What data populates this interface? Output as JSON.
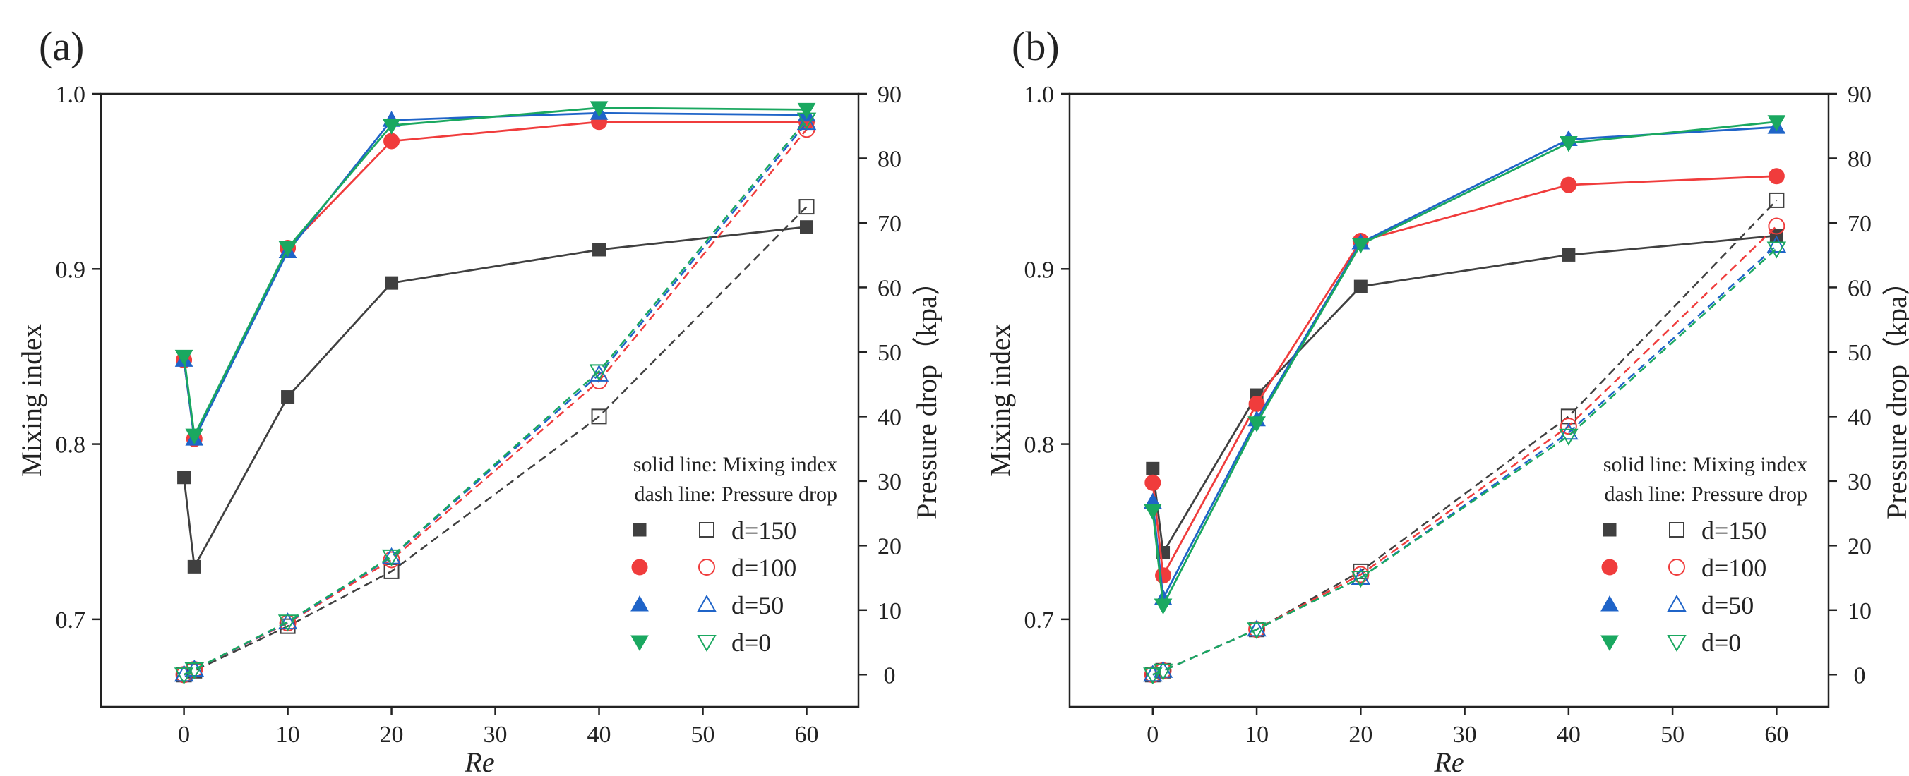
{
  "chart_data": [
    {
      "panel": "(a)",
      "type": "line",
      "xlabel": "Re",
      "ylabel_left": "Mixing index",
      "ylabel_right": "Pressure drop（kpa）",
      "xlim": [
        -8,
        65
      ],
      "ylim_left": [
        0.65,
        1.0
      ],
      "ylim_right": [
        -5,
        90
      ],
      "xticks": [
        0,
        10,
        20,
        30,
        40,
        50,
        60
      ],
      "yticks_left": [
        0.7,
        0.8,
        0.9,
        1.0
      ],
      "yticks_right": [
        0,
        10,
        20,
        30,
        40,
        50,
        60,
        70,
        80,
        90
      ],
      "x": [
        0,
        1,
        10,
        20,
        40,
        60
      ],
      "notes": [
        "solid line: Mixing index",
        "dash line: Pressure drop"
      ],
      "series": [
        {
          "name": "d=150",
          "color": "#404040",
          "marker": "square",
          "mixing_index": [
            0.781,
            0.73,
            0.827,
            0.892,
            0.911,
            0.924
          ],
          "pressure_drop": [
            0.0,
            0.6,
            7.5,
            16.0,
            40.0,
            72.5
          ]
        },
        {
          "name": "d=100",
          "color": "#f03c3c",
          "marker": "circle",
          "mixing_index": [
            0.848,
            0.803,
            0.912,
            0.973,
            0.984,
            0.984
          ],
          "pressure_drop": [
            0.0,
            0.8,
            8.0,
            17.8,
            45.5,
            84.5
          ]
        },
        {
          "name": "d=50",
          "color": "#1f64c8",
          "marker": "triangle-up",
          "mixing_index": [
            0.848,
            0.803,
            0.91,
            0.985,
            0.989,
            0.988
          ],
          "pressure_drop": [
            0.0,
            0.8,
            8.1,
            18.2,
            46.5,
            85.5
          ]
        },
        {
          "name": "d=0",
          "color": "#1aa860",
          "marker": "triangle-down",
          "mixing_index": [
            0.85,
            0.805,
            0.912,
            0.982,
            0.992,
            0.991
          ],
          "pressure_drop": [
            0.0,
            0.8,
            8.2,
            18.3,
            47.0,
            86.0
          ]
        }
      ]
    },
    {
      "panel": "(b)",
      "type": "line",
      "xlabel": "Re",
      "ylabel_left": "Mixing index",
      "ylabel_right": "Pressure drop（kpa）",
      "xlim": [
        -8,
        65
      ],
      "ylim_left": [
        0.65,
        1.0
      ],
      "ylim_right": [
        -5,
        90
      ],
      "xticks": [
        0,
        10,
        20,
        30,
        40,
        50,
        60
      ],
      "yticks_left": [
        0.7,
        0.8,
        0.9,
        1.0
      ],
      "yticks_right": [
        0,
        10,
        20,
        30,
        40,
        50,
        60,
        70,
        80,
        90
      ],
      "x": [
        0,
        1,
        10,
        20,
        40,
        60
      ],
      "notes": [
        "solid line: Mixing index",
        "dash line: Pressure drop"
      ],
      "series": [
        {
          "name": "d=150",
          "color": "#404040",
          "marker": "square",
          "mixing_index": [
            0.786,
            0.738,
            0.828,
            0.89,
            0.908,
            0.919
          ],
          "pressure_drop": [
            0.0,
            0.6,
            7.0,
            16.0,
            40.0,
            73.5
          ]
        },
        {
          "name": "d=100",
          "color": "#f03c3c",
          "marker": "circle",
          "mixing_index": [
            0.778,
            0.725,
            0.823,
            0.916,
            0.948,
            0.953
          ],
          "pressure_drop": [
            0.0,
            0.6,
            7.0,
            15.5,
            38.5,
            69.5
          ]
        },
        {
          "name": "d=50",
          "color": "#1f64c8",
          "marker": "triangle-up",
          "mixing_index": [
            0.767,
            0.712,
            0.814,
            0.915,
            0.974,
            0.981
          ],
          "pressure_drop": [
            0.0,
            0.6,
            7.0,
            15.0,
            37.5,
            66.5
          ]
        },
        {
          "name": "d=0",
          "color": "#1aa860",
          "marker": "triangle-down",
          "mixing_index": [
            0.762,
            0.708,
            0.812,
            0.914,
            0.972,
            0.984
          ],
          "pressure_drop": [
            0.0,
            0.6,
            7.0,
            15.0,
            37.0,
            66.0
          ]
        }
      ]
    }
  ]
}
